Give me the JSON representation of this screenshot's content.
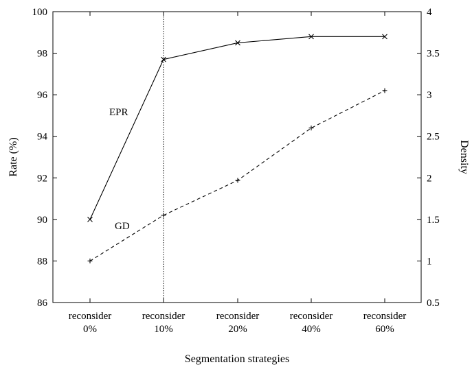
{
  "chart_data": {
    "type": "line",
    "categories": [
      "reconsider\n0%",
      "reconsider\n10%",
      "reconsider\n20%",
      "reconsider\n40%",
      "reconsider\n60%"
    ],
    "xlabel": "Segmentation strategies",
    "ylabel": "Rate (%)",
    "y2label": "Density",
    "ylim": [
      86,
      100
    ],
    "y2lim": [
      0.5,
      4
    ],
    "yticks": [
      86,
      88,
      90,
      92,
      94,
      96,
      98,
      100
    ],
    "y2ticks": [
      "0.5",
      "1",
      "1.5",
      "2",
      "2.5",
      "3",
      "3.5",
      "4"
    ],
    "series": [
      {
        "name": "EPR",
        "axis": "left",
        "values": [
          90.0,
          97.7,
          98.5,
          98.8,
          98.8
        ],
        "line_style": "solid",
        "marker": "x",
        "color": "#000000"
      },
      {
        "name": "GD",
        "axis": "right",
        "values": [
          1.0,
          1.55,
          1.97,
          2.6,
          3.05
        ],
        "line_style": "dashed",
        "marker": "+",
        "color": "#000000"
      }
    ],
    "vertical_reference": {
      "category_index": 1,
      "style": "dotted"
    },
    "grid": false,
    "legend": "none (inline labels)"
  }
}
